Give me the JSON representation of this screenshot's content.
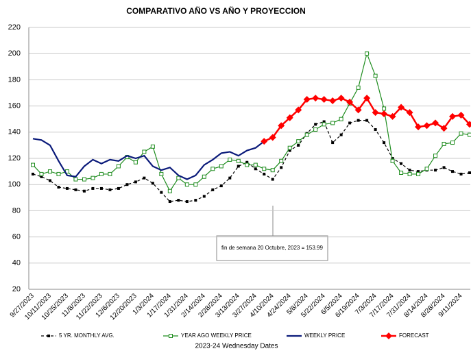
{
  "chart_data": {
    "type": "line",
    "title": "COMPARATIVO AÑO VS  AÑO Y PROYECCION",
    "x_label": "2023-24 Wednesday Dates",
    "annotation": "fin de semana 20 Octubre, 2023 = 153.99",
    "categories": [
      "9/27/2023",
      null,
      "10/11/2023",
      null,
      "10/25/2023",
      null,
      "11/8/2023",
      null,
      "11/22/2023",
      null,
      "12/6/2023",
      null,
      "12/20/2023",
      null,
      "1/3/2024",
      null,
      "1/17/2024",
      null,
      "1/31/2024",
      null,
      "2/14/2024",
      null,
      "2/28/2024",
      null,
      "3/13/2024",
      null,
      "3/27/2024",
      null,
      "4/10/2024",
      null,
      "4/24/2024",
      null,
      "5/8/2024",
      null,
      "5/22/2024",
      null,
      "6/5/2024",
      null,
      "6/19/2024",
      null,
      "7/3/2024",
      null,
      "7/17/2024",
      null,
      "7/31/2024",
      null,
      "8/14/2024",
      null,
      "8/28/2024",
      null,
      "9/11/2024",
      null
    ],
    "ylim": [
      20,
      220
    ],
    "yticks": [
      20,
      40,
      60,
      80,
      100,
      120,
      140,
      160,
      180,
      200,
      220
    ],
    "grid": true,
    "series": [
      {
        "name": "5 YR. MONTHLY AVG.",
        "color": "#000000",
        "values": [
          108,
          106,
          103,
          98,
          97,
          96,
          95,
          97,
          97,
          96,
          97,
          100,
          102,
          105,
          101,
          94,
          87,
          88,
          87,
          88,
          91,
          96,
          99,
          105,
          114,
          117,
          112,
          108,
          104,
          113,
          126,
          130,
          139,
          146,
          148,
          132,
          138,
          147,
          149,
          149,
          142,
          132,
          120,
          116,
          111,
          110,
          111,
          111,
          113,
          110,
          108,
          109
        ]
      },
      {
        "name": "YEAR AGO WEEKLY PRICE",
        "color": "#1e8c1e",
        "values": [
          115,
          108,
          110,
          108,
          110,
          104,
          104,
          105,
          108,
          108,
          114,
          121,
          117,
          125,
          129,
          108,
          95,
          105,
          100,
          100,
          106,
          112,
          114,
          119,
          118,
          115,
          115,
          112,
          111,
          118,
          128,
          133,
          138,
          142,
          146,
          147,
          150,
          162,
          174,
          200,
          183,
          158,
          118,
          109,
          108,
          108,
          112,
          122,
          131,
          132,
          139,
          138
        ]
      },
      {
        "name": "WEEKLY PRICE",
        "color": "#0a1a7a",
        "values": [
          135,
          134,
          130,
          118,
          107,
          106,
          114,
          119,
          116,
          119,
          118,
          122,
          120,
          122,
          114,
          111,
          113,
          107,
          104,
          107,
          115,
          119,
          124,
          125,
          122,
          126,
          128,
          133,
          null,
          null,
          null,
          null,
          null,
          null,
          null,
          null,
          null,
          null,
          null,
          null,
          null,
          null,
          null,
          null,
          null,
          null,
          null,
          null,
          null,
          null,
          null,
          null
        ]
      },
      {
        "name": "FORECAST",
        "color": "#ff0000",
        "values": [
          null,
          null,
          null,
          null,
          null,
          null,
          null,
          null,
          null,
          null,
          null,
          null,
          null,
          null,
          null,
          null,
          null,
          null,
          null,
          null,
          null,
          null,
          null,
          null,
          null,
          null,
          null,
          133,
          136,
          145,
          151,
          157,
          165,
          166,
          165,
          164,
          166,
          163,
          157,
          166,
          155,
          154,
          152,
          159,
          155,
          144,
          145,
          147,
          143,
          152,
          153,
          146
        ]
      }
    ]
  }
}
